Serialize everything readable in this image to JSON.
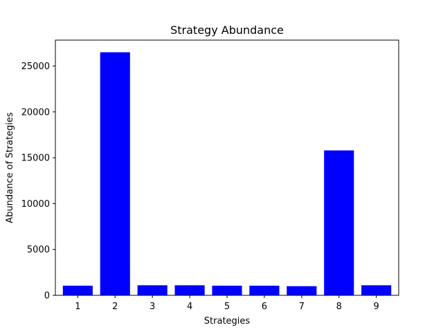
{
  "chart_data": {
    "type": "bar",
    "title": "Strategy Abundance",
    "xlabel": "Strategies",
    "ylabel": "Abundance of Strategies",
    "categories": [
      "1",
      "2",
      "3",
      "4",
      "5",
      "6",
      "7",
      "8",
      "9"
    ],
    "values": [
      1050,
      26500,
      1100,
      1100,
      1050,
      1050,
      1000,
      15800,
      1100
    ],
    "ylim": [
      0,
      27825
    ],
    "yticks": [
      0,
      5000,
      10000,
      15000,
      20000,
      25000
    ],
    "ytick_labels": [
      "0",
      "5000",
      "10000",
      "15000",
      "20000",
      "25000"
    ],
    "bar_color": "#0000ff",
    "grid": false,
    "legend": "none"
  }
}
